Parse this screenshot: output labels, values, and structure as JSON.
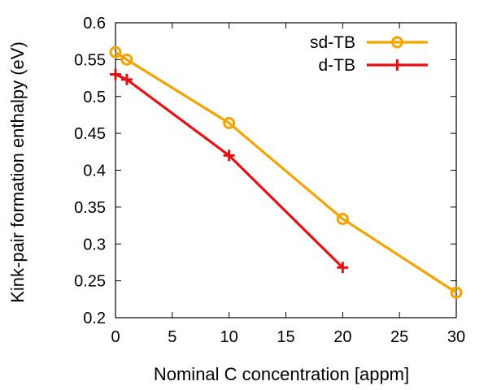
{
  "chart_data": {
    "type": "line",
    "title": "",
    "xlabel": "Nominal C concentration [appm]",
    "ylabel": "Kink-pair formation enthalpy (eV)",
    "xlim": [
      0,
      30
    ],
    "ylim": [
      0.2,
      0.6
    ],
    "xticks": [
      0,
      5,
      10,
      15,
      20,
      25,
      30
    ],
    "yticks": [
      0.2,
      0.25,
      0.3,
      0.35,
      0.4,
      0.45,
      0.5,
      0.55,
      0.6
    ],
    "xtick_labels": [
      "0",
      "5",
      "10",
      "15",
      "20",
      "25",
      "30"
    ],
    "ytick_labels": [
      "0.2",
      "0.25",
      "0.3",
      "0.35",
      "0.4",
      "0.45",
      "0.5",
      "0.55",
      "0.6"
    ],
    "grid": false,
    "legend_position": "top-right",
    "series": [
      {
        "name": "sd-TB",
        "color": "#f5a300",
        "marker": "circle",
        "x": [
          0,
          1,
          10,
          20,
          30
        ],
        "y": [
          0.56,
          0.55,
          0.464,
          0.334,
          0.234
        ]
      },
      {
        "name": "d-TB",
        "color": "#e81010",
        "marker": "plus",
        "x": [
          0,
          1,
          10,
          20
        ],
        "y": [
          0.53,
          0.523,
          0.42,
          0.268
        ]
      }
    ]
  }
}
